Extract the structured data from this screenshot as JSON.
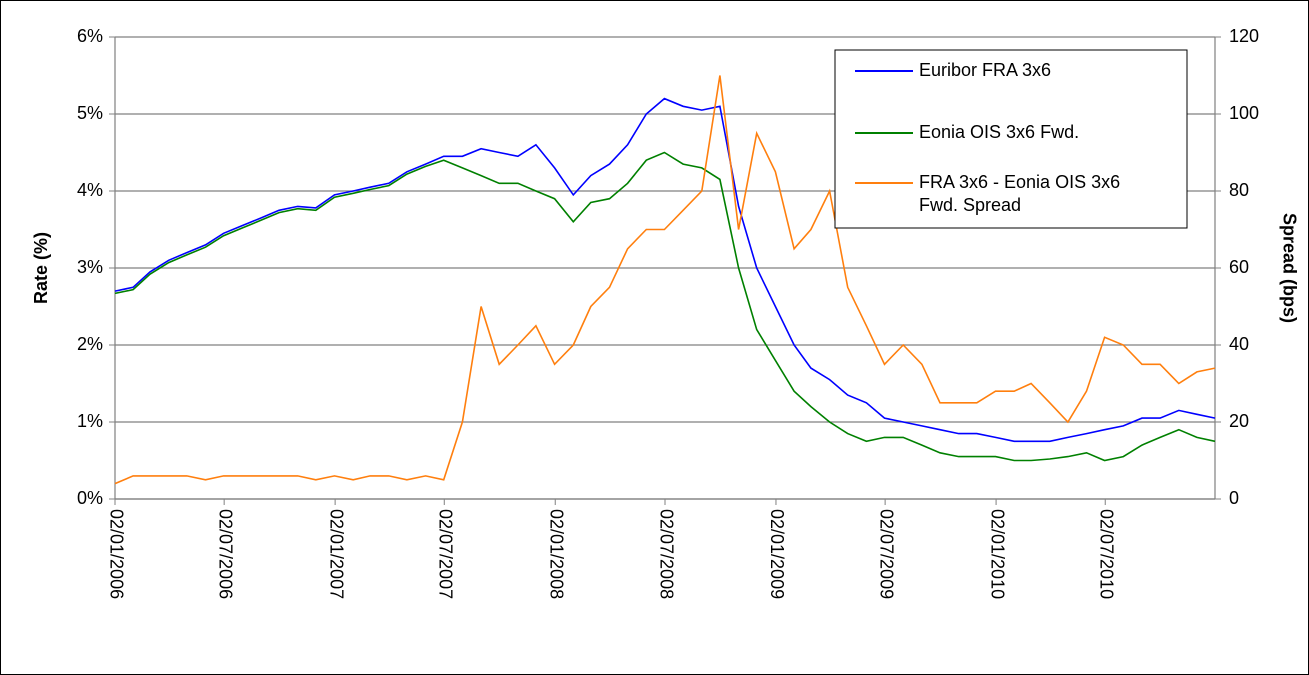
{
  "chart_data": {
    "type": "line",
    "ylabel": "Rate (%)",
    "y2label": "Spread (bps)",
    "x": [
      "02/01/2006",
      "01/02/2006",
      "01/03/2006",
      "01/04/2006",
      "01/05/2006",
      "01/06/2006",
      "01/07/2006",
      "01/08/2006",
      "01/09/2006",
      "01/10/2006",
      "01/11/2006",
      "01/12/2006",
      "01/01/2007",
      "01/02/2007",
      "01/03/2007",
      "01/04/2007",
      "01/05/2007",
      "01/06/2007",
      "01/07/2007",
      "01/08/2007",
      "01/09/2007",
      "01/10/2007",
      "01/11/2007",
      "01/12/2007",
      "01/01/2008",
      "01/02/2008",
      "01/03/2008",
      "01/04/2008",
      "01/05/2008",
      "01/06/2008",
      "01/07/2008",
      "01/08/2008",
      "01/09/2008",
      "01/10/2008",
      "01/11/2008",
      "01/12/2008",
      "01/01/2009",
      "01/02/2009",
      "01/03/2009",
      "01/04/2009",
      "01/05/2009",
      "01/06/2009",
      "01/07/2009",
      "01/08/2009",
      "01/09/2009",
      "01/10/2009",
      "01/11/2009",
      "01/12/2009",
      "01/01/2010",
      "01/02/2010",
      "01/03/2010",
      "01/04/2010",
      "01/05/2010",
      "01/06/2010",
      "01/07/2010",
      "01/08/2010",
      "01/09/2010",
      "01/10/2010",
      "01/11/2010",
      "01/12/2010",
      "31/12/2010"
    ],
    "series": [
      {
        "name": "Euribor FRA 3x6",
        "color": "#0000ff",
        "values": [
          2.7,
          2.75,
          2.95,
          3.1,
          3.2,
          3.3,
          3.45,
          3.55,
          3.65,
          3.75,
          3.8,
          3.78,
          3.95,
          4.0,
          4.05,
          4.1,
          4.25,
          4.35,
          4.45,
          4.45,
          4.55,
          4.5,
          4.45,
          4.6,
          4.3,
          3.95,
          4.2,
          4.35,
          4.6,
          5.0,
          5.2,
          5.1,
          5.05,
          5.1,
          3.8,
          3.0,
          2.5,
          2.0,
          1.7,
          1.55,
          1.35,
          1.25,
          1.05,
          1.0,
          0.95,
          0.9,
          0.85,
          0.85,
          0.8,
          0.75,
          0.75,
          0.75,
          0.8,
          0.85,
          0.9,
          0.95,
          1.05,
          1.05,
          1.15,
          1.1,
          1.05
        ]
      },
      {
        "name": "Eonia OIS 3x6 Fwd.",
        "color": "#008000",
        "values": [
          2.67,
          2.72,
          2.92,
          3.07,
          3.17,
          3.27,
          3.42,
          3.52,
          3.62,
          3.72,
          3.77,
          3.75,
          3.92,
          3.97,
          4.02,
          4.07,
          4.22,
          4.32,
          4.4,
          4.3,
          4.2,
          4.1,
          4.1,
          4.0,
          3.9,
          3.6,
          3.85,
          3.9,
          4.1,
          4.4,
          4.5,
          4.35,
          4.3,
          4.15,
          3.0,
          2.2,
          1.8,
          1.4,
          1.2,
          1.0,
          0.85,
          0.75,
          0.8,
          0.8,
          0.7,
          0.6,
          0.55,
          0.55,
          0.55,
          0.5,
          0.5,
          0.52,
          0.55,
          0.6,
          0.5,
          0.55,
          0.7,
          0.8,
          0.9,
          0.8,
          0.75
        ]
      },
      {
        "name": "FRA 3x6 - Eonia OIS 3x6 Fwd. Spread",
        "color": "#ff7f0e",
        "axis": "y2",
        "values": [
          4,
          6,
          6,
          6,
          6,
          5,
          6,
          6,
          6,
          6,
          6,
          5,
          6,
          5,
          6,
          6,
          5,
          6,
          5,
          20,
          50,
          35,
          40,
          45,
          35,
          40,
          50,
          55,
          65,
          70,
          70,
          75,
          80,
          110,
          70,
          95,
          85,
          65,
          70,
          80,
          55,
          45,
          35,
          40,
          35,
          25,
          25,
          25,
          28,
          28,
          30,
          25,
          20,
          28,
          42,
          40,
          35,
          35,
          30,
          33,
          34
        ]
      }
    ],
    "xlim": [
      "02/01/2006",
      "31/12/2010"
    ],
    "xticks": [
      "02/01/2006",
      "02/07/2006",
      "02/01/2007",
      "02/07/2007",
      "02/01/2008",
      "02/07/2008",
      "02/01/2009",
      "02/07/2009",
      "02/01/2010",
      "02/07/2010"
    ],
    "ylim": [
      0,
      6
    ],
    "yticks": [
      {
        "value": 0,
        "label": "0%"
      },
      {
        "value": 1,
        "label": "1%"
      },
      {
        "value": 2,
        "label": "2%"
      },
      {
        "value": 3,
        "label": "3%"
      },
      {
        "value": 4,
        "label": "4%"
      },
      {
        "value": 5,
        "label": "5%"
      },
      {
        "value": 6,
        "label": "6%"
      }
    ],
    "y2lim": [
      0,
      120
    ],
    "y2ticks": [
      0,
      20,
      40,
      60,
      80,
      100,
      120
    ],
    "grid": true,
    "legend": "upper right"
  }
}
